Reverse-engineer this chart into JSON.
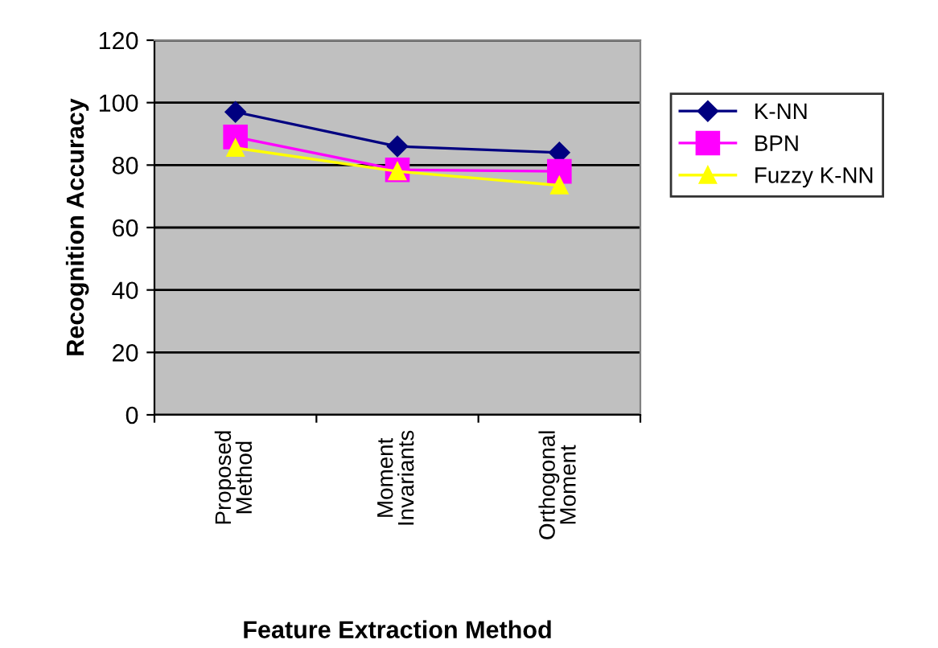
{
  "chart_data": {
    "type": "line",
    "xlabel": "Feature Extraction Method",
    "ylabel": "Recognition Accuracy",
    "categories": [
      "Proposed\nMethod",
      "Moment\nInvariants",
      "Orthogonal\nMoment"
    ],
    "series": [
      {
        "name": "K-NN",
        "color": "#000080",
        "marker": "diamond",
        "values": [
          97,
          86,
          84
        ]
      },
      {
        "name": "BPN",
        "color": "#ff00ff",
        "marker": "square",
        "values": [
          89,
          78.5,
          78
        ]
      },
      {
        "name": "Fuzzy K-NN",
        "color": "#ffff00",
        "marker": "triangle",
        "values": [
          85.5,
          78,
          73.5
        ]
      }
    ],
    "ylim": [
      0,
      120
    ],
    "yticks": [
      0,
      20,
      40,
      60,
      80,
      100,
      120
    ],
    "grid": "y",
    "legend": "right"
  }
}
